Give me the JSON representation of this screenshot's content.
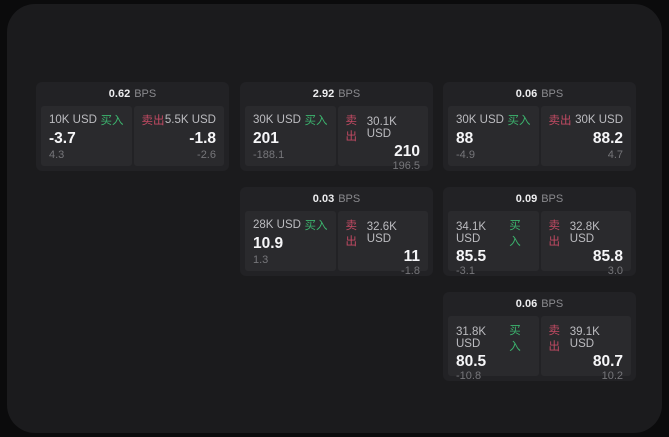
{
  "labels": {
    "bps": "BPS",
    "buy": "买入",
    "sell": "卖出"
  },
  "colors": {
    "buy_green": "#3cb46e",
    "sell_red": "#c24a63",
    "panel_bg": "#1b1b1d",
    "card_bg": "#222225",
    "tile_bg": "#2a2a2d"
  },
  "cards": [
    {
      "row": 0,
      "col": 0,
      "bps": "0.62",
      "buy": {
        "size": "10K USD",
        "value": "-3.7",
        "delta": "4.3"
      },
      "sell": {
        "size": "5.5K USD",
        "value": "-1.8",
        "delta": "-2.6"
      }
    },
    {
      "row": 0,
      "col": 1,
      "bps": "2.92",
      "buy": {
        "size": "30K USD",
        "value": "201",
        "delta": "-188.1"
      },
      "sell": {
        "size": "30.1K USD",
        "value": "210",
        "delta": "196.5"
      }
    },
    {
      "row": 0,
      "col": 2,
      "bps": "0.06",
      "buy": {
        "size": "30K USD",
        "value": "88",
        "delta": "-4.9"
      },
      "sell": {
        "size": "30K USD",
        "value": "88.2",
        "delta": "4.7"
      }
    },
    {
      "row": 1,
      "col": 1,
      "bps": "0.03",
      "buy": {
        "size": "28K USD",
        "value": "10.9",
        "delta": "1.3"
      },
      "sell": {
        "size": "32.6K USD",
        "value": "11",
        "delta": "-1.8"
      }
    },
    {
      "row": 1,
      "col": 2,
      "bps": "0.09",
      "buy": {
        "size": "34.1K USD",
        "value": "85.5",
        "delta": "-3.1"
      },
      "sell": {
        "size": "32.8K USD",
        "value": "85.8",
        "delta": "3.0"
      }
    },
    {
      "row": 2,
      "col": 2,
      "bps": "0.06",
      "buy": {
        "size": "31.8K USD",
        "value": "80.5",
        "delta": "-10.8"
      },
      "sell": {
        "size": "39.1K USD",
        "value": "80.7",
        "delta": "10.2"
      }
    }
  ]
}
